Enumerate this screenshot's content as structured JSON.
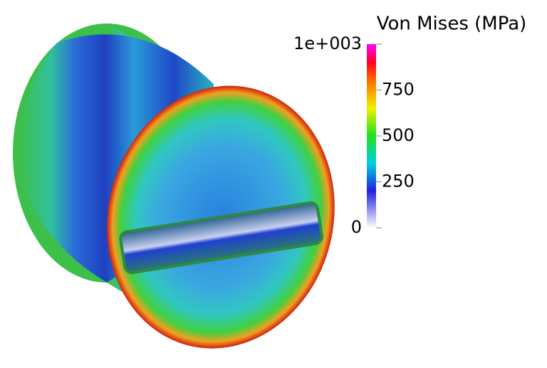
{
  "colorbar": {
    "title": "Von Mises (MPa)",
    "clim": [
      0,
      1000
    ],
    "ticks": [
      {
        "value": 1000,
        "label": "1e+003"
      },
      750,
      500,
      250,
      0
    ]
  }
}
